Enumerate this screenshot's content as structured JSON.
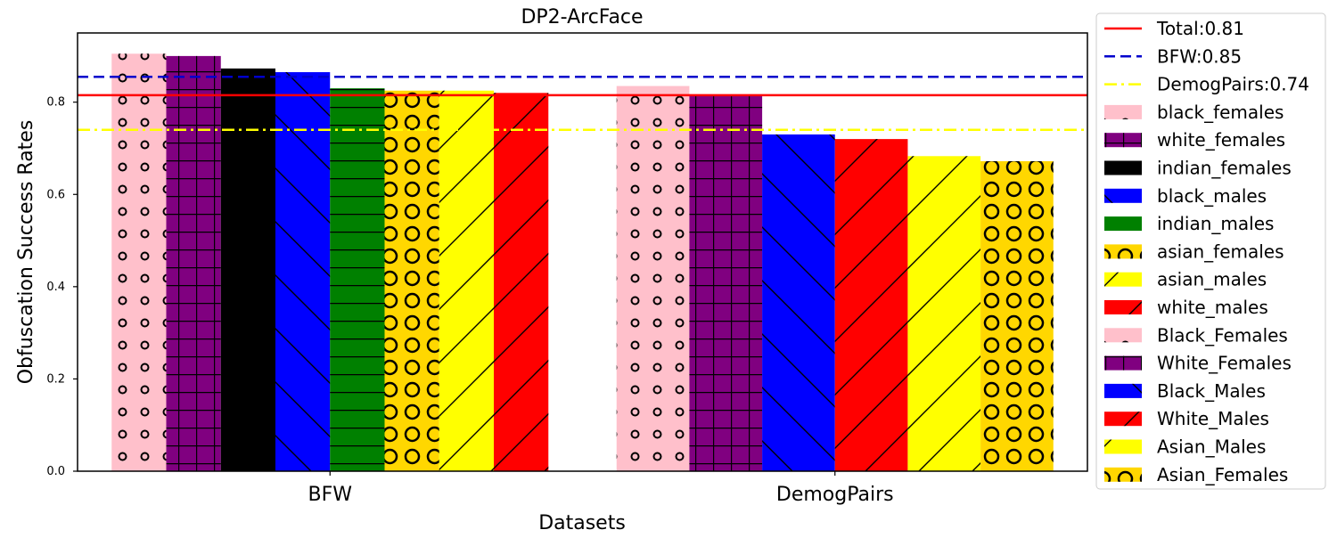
{
  "chart_data": {
    "type": "bar",
    "title": "DP2-ArcFace",
    "xlabel": "Datasets",
    "ylabel": "Obfuscation Success Rates",
    "ylim": [
      0,
      0.95
    ],
    "yticks": [
      "0.0",
      "0.2",
      "0.4",
      "0.6",
      "0.8"
    ],
    "grid": false,
    "legend_position": "outside-right",
    "groups": [
      {
        "category": "BFW",
        "bars": [
          {
            "series": "black_females",
            "value": 0.905,
            "color": "#ffc0cb",
            "pattern": "small-circles"
          },
          {
            "series": "white_females",
            "value": 0.9,
            "color": "#800080",
            "pattern": "grid"
          },
          {
            "series": "indian_females",
            "value": 0.873,
            "color": "#000000",
            "pattern": "none"
          },
          {
            "series": "black_males",
            "value": 0.865,
            "color": "#0000ff",
            "pattern": "backslash"
          },
          {
            "series": "indian_males",
            "value": 0.83,
            "color": "#008000",
            "pattern": "horizontal"
          },
          {
            "series": "asian_females",
            "value": 0.825,
            "color": "#ffd700",
            "pattern": "big-circles"
          },
          {
            "series": "asian_males",
            "value": 0.825,
            "color": "#ffff00",
            "pattern": "slash"
          },
          {
            "series": "white_males",
            "value": 0.82,
            "color": "#ff0000",
            "pattern": "slash"
          }
        ]
      },
      {
        "category": "DemogPairs",
        "bars": [
          {
            "series": "Black_Females",
            "value": 0.835,
            "color": "#ffc0cb",
            "pattern": "small-circles"
          },
          {
            "series": "White_Females",
            "value": 0.815,
            "color": "#800080",
            "pattern": "grid"
          },
          {
            "series": "Black_Males",
            "value": 0.73,
            "color": "#0000ff",
            "pattern": "backslash"
          },
          {
            "series": "White_Males",
            "value": 0.72,
            "color": "#ff0000",
            "pattern": "slash"
          },
          {
            "series": "Asian_Males",
            "value": 0.683,
            "color": "#ffff00",
            "pattern": "slash"
          },
          {
            "series": "Asian_Females",
            "value": 0.672,
            "color": "#ffd700",
            "pattern": "big-circles"
          }
        ]
      }
    ],
    "reference_lines": [
      {
        "label": "Total:0.81",
        "value": 0.815,
        "color": "#ff0000",
        "style": "solid"
      },
      {
        "label": "BFW:0.85",
        "value": 0.855,
        "color": "#0000cc",
        "style": "dashed"
      },
      {
        "label": "DemogPairs:0.74",
        "value": 0.74,
        "color": "#ffff00",
        "style": "dashdot"
      }
    ],
    "legend": [
      {
        "label": "Total:0.81",
        "kind": "line",
        "color": "#ff0000",
        "style": "solid"
      },
      {
        "label": "BFW:0.85",
        "kind": "line",
        "color": "#0000cc",
        "style": "dashed"
      },
      {
        "label": "DemogPairs:0.74",
        "kind": "line",
        "color": "#ffff00",
        "style": "dashdot"
      },
      {
        "label": "black_females",
        "kind": "patch",
        "color": "#ffc0cb",
        "pattern": "small-circles"
      },
      {
        "label": "white_females",
        "kind": "patch",
        "color": "#800080",
        "pattern": "grid"
      },
      {
        "label": "indian_females",
        "kind": "patch",
        "color": "#000000",
        "pattern": "none"
      },
      {
        "label": "black_males",
        "kind": "patch",
        "color": "#0000ff",
        "pattern": "backslash"
      },
      {
        "label": "indian_males",
        "kind": "patch",
        "color": "#008000",
        "pattern": "horizontal"
      },
      {
        "label": "asian_females",
        "kind": "patch",
        "color": "#ffd700",
        "pattern": "big-circles"
      },
      {
        "label": "asian_males",
        "kind": "patch",
        "color": "#ffff00",
        "pattern": "slash"
      },
      {
        "label": "white_males",
        "kind": "patch",
        "color": "#ff0000",
        "pattern": "slash"
      },
      {
        "label": "Black_Females",
        "kind": "patch",
        "color": "#ffc0cb",
        "pattern": "small-circles"
      },
      {
        "label": "White_Females",
        "kind": "patch",
        "color": "#800080",
        "pattern": "grid"
      },
      {
        "label": "Black_Males",
        "kind": "patch",
        "color": "#0000ff",
        "pattern": "backslash"
      },
      {
        "label": "White_Males",
        "kind": "patch",
        "color": "#ff0000",
        "pattern": "slash"
      },
      {
        "label": "Asian_Males",
        "kind": "patch",
        "color": "#ffff00",
        "pattern": "slash"
      },
      {
        "label": "Asian_Females",
        "kind": "patch",
        "color": "#ffd700",
        "pattern": "big-circles"
      }
    ]
  }
}
